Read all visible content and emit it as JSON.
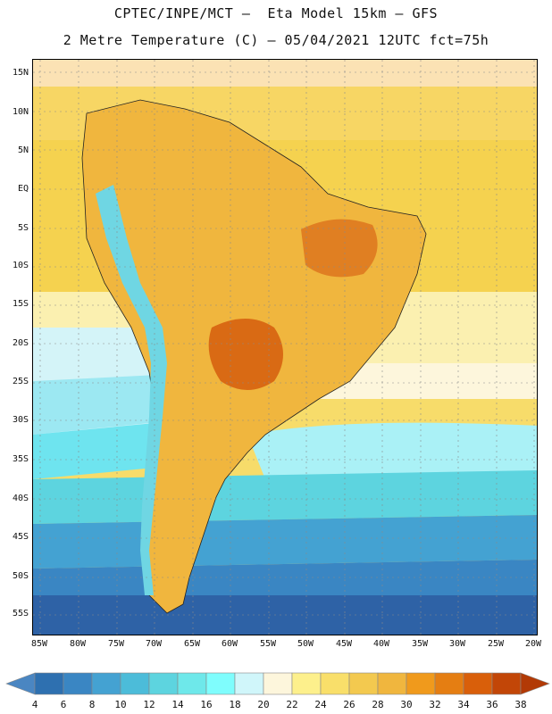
{
  "title": {
    "line1": "CPTEC/INPE/MCT –  Eta Model 15km – GFS",
    "line2": "2 Metre Temperature (C) – 05/04/2021 12UTC fct=75h"
  },
  "map": {
    "lat_labels": [
      "15N",
      "10N",
      "5N",
      "EQ",
      "5S",
      "10S",
      "15S",
      "20S",
      "25S",
      "30S",
      "35S",
      "40S",
      "45S",
      "50S",
      "55S"
    ],
    "lon_labels": [
      "85W",
      "80W",
      "75W",
      "70W",
      "65W",
      "60W",
      "55W",
      "50W",
      "45W",
      "40W",
      "35W",
      "30W",
      "25W",
      "20W"
    ]
  },
  "legend": {
    "labels": [
      "4",
      "6",
      "8",
      "10",
      "12",
      "14",
      "16",
      "18",
      "20",
      "22",
      "24",
      "26",
      "28",
      "30",
      "32",
      "34",
      "36",
      "38"
    ],
    "colors": [
      "#4a86c2",
      "#2e70b0",
      "#3a86c3",
      "#44a2d2",
      "#4cbcd9",
      "#5dd4df",
      "#6ee8ea",
      "#7ffdfd",
      "#d0f6fa",
      "#fdf6dc",
      "#fdf08c",
      "#f9df6a",
      "#f3c94f",
      "#f0b63e",
      "#f09a1c",
      "#e57e12",
      "#d95f0a",
      "#c24607",
      "#b23a06"
    ]
  }
}
